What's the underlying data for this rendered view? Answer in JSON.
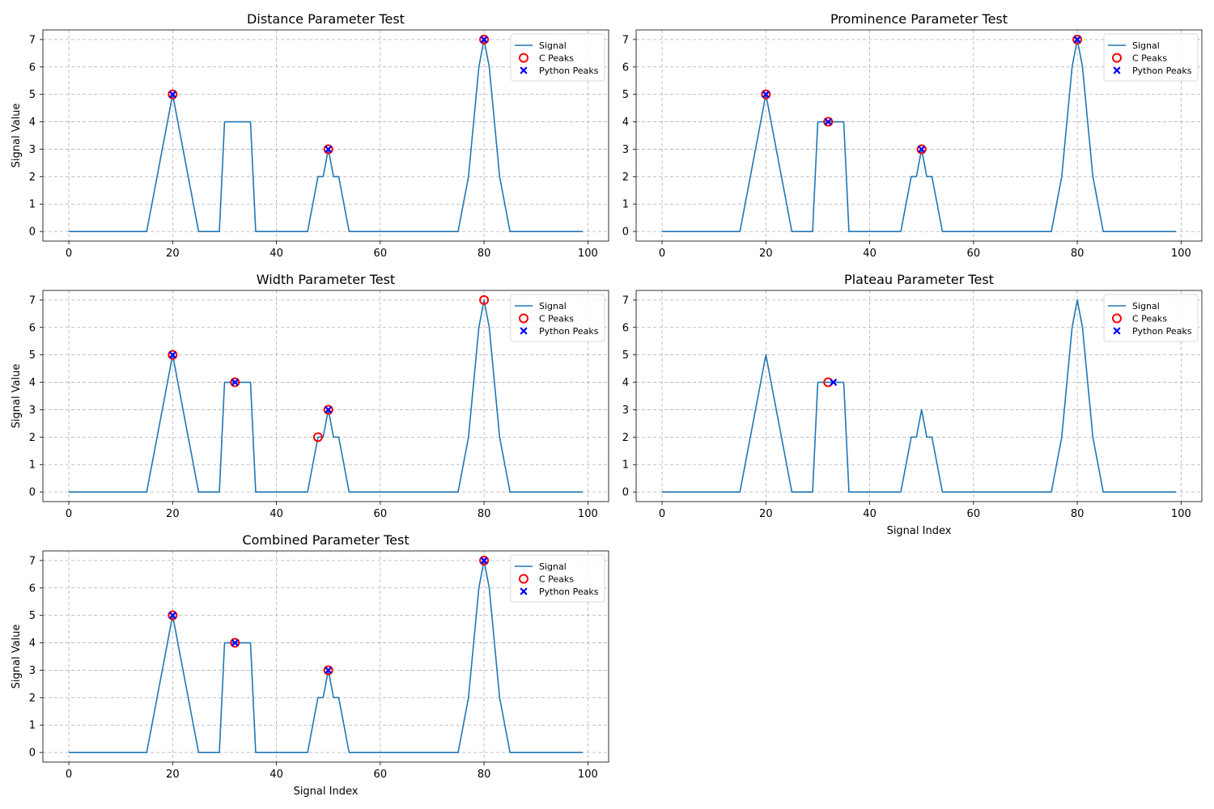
{
  "figure": {
    "colors": {
      "signal": "#1f77b4",
      "c_peaks": "#ff0000",
      "python_peaks": "#0000ff",
      "grid": "#b0b0b0",
      "frame": "#000000"
    }
  },
  "chart_data": [
    {
      "type": "line",
      "title": "Distance Parameter Test",
      "xlabel": "",
      "ylabel": "Signal Value",
      "xlim": [
        -5,
        104
      ],
      "ylim": [
        -0.35,
        7.35
      ],
      "xticks": [
        0,
        20,
        40,
        60,
        80,
        100
      ],
      "yticks": [
        0,
        1,
        2,
        3,
        4,
        5,
        6,
        7
      ],
      "grid": true,
      "legend_position": "top-right",
      "signal": {
        "name": "Signal",
        "x": [
          0,
          15,
          20,
          25,
          29,
          30,
          35,
          36,
          46,
          48,
          49,
          50,
          51,
          52,
          54,
          75,
          77,
          79,
          80,
          81,
          83,
          85,
          99
        ],
        "y": [
          0,
          0,
          5,
          0,
          0,
          4,
          4,
          0,
          0,
          2,
          2,
          3,
          2,
          2,
          0,
          0,
          2,
          6,
          7,
          6,
          2,
          0,
          0
        ]
      },
      "c_peaks": {
        "name": "C Peaks",
        "x": [
          20,
          50,
          80
        ],
        "y": [
          5,
          3,
          7
        ]
      },
      "python_peaks": {
        "name": "Python Peaks",
        "x": [
          20,
          50,
          80
        ],
        "y": [
          5,
          3,
          7
        ]
      }
    },
    {
      "type": "line",
      "title": "Prominence Parameter Test",
      "xlabel": "",
      "ylabel": "",
      "xlim": [
        -5,
        104
      ],
      "ylim": [
        -0.35,
        7.35
      ],
      "xticks": [
        0,
        20,
        40,
        60,
        80,
        100
      ],
      "yticks": [
        0,
        1,
        2,
        3,
        4,
        5,
        6,
        7
      ],
      "grid": true,
      "legend_position": "top-right",
      "signal": {
        "name": "Signal",
        "x": [
          0,
          15,
          20,
          25,
          29,
          30,
          35,
          36,
          46,
          48,
          49,
          50,
          51,
          52,
          54,
          75,
          77,
          79,
          80,
          81,
          83,
          85,
          99
        ],
        "y": [
          0,
          0,
          5,
          0,
          0,
          4,
          4,
          0,
          0,
          2,
          2,
          3,
          2,
          2,
          0,
          0,
          2,
          6,
          7,
          6,
          2,
          0,
          0
        ]
      },
      "c_peaks": {
        "name": "C Peaks",
        "x": [
          20,
          32,
          50,
          80
        ],
        "y": [
          5,
          4,
          3,
          7
        ]
      },
      "python_peaks": {
        "name": "Python Peaks",
        "x": [
          20,
          32,
          50,
          80
        ],
        "y": [
          5,
          4,
          3,
          7
        ]
      }
    },
    {
      "type": "line",
      "title": "Width Parameter Test",
      "xlabel": "",
      "ylabel": "Signal Value",
      "xlim": [
        -5,
        104
      ],
      "ylim": [
        -0.35,
        7.35
      ],
      "xticks": [
        0,
        20,
        40,
        60,
        80,
        100
      ],
      "yticks": [
        0,
        1,
        2,
        3,
        4,
        5,
        6,
        7
      ],
      "grid": true,
      "legend_position": "top-right",
      "signal": {
        "name": "Signal",
        "x": [
          0,
          15,
          20,
          25,
          29,
          30,
          35,
          36,
          46,
          48,
          49,
          50,
          51,
          52,
          54,
          75,
          77,
          79,
          80,
          81,
          83,
          85,
          99
        ],
        "y": [
          0,
          0,
          5,
          0,
          0,
          4,
          4,
          0,
          0,
          2,
          2,
          3,
          2,
          2,
          0,
          0,
          2,
          6,
          7,
          6,
          2,
          0,
          0
        ]
      },
      "c_peaks": {
        "name": "C Peaks",
        "x": [
          20,
          32,
          48,
          50,
          80
        ],
        "y": [
          5,
          4,
          2,
          3,
          7
        ]
      },
      "python_peaks": {
        "name": "Python Peaks",
        "x": [
          20,
          32,
          50
        ],
        "y": [
          5,
          4,
          3
        ]
      }
    },
    {
      "type": "line",
      "title": "Plateau Parameter Test",
      "xlabel": "Signal Index",
      "ylabel": "",
      "xlim": [
        -5,
        104
      ],
      "ylim": [
        -0.35,
        7.35
      ],
      "xticks": [
        0,
        20,
        40,
        60,
        80,
        100
      ],
      "yticks": [
        0,
        1,
        2,
        3,
        4,
        5,
        6,
        7
      ],
      "grid": true,
      "legend_position": "top-right",
      "signal": {
        "name": "Signal",
        "x": [
          0,
          15,
          20,
          25,
          29,
          30,
          35,
          36,
          46,
          48,
          49,
          50,
          51,
          52,
          54,
          75,
          77,
          79,
          80,
          81,
          83,
          85,
          99
        ],
        "y": [
          0,
          0,
          5,
          0,
          0,
          4,
          4,
          0,
          0,
          2,
          2,
          3,
          2,
          2,
          0,
          0,
          2,
          6,
          7,
          6,
          2,
          0,
          0
        ]
      },
      "c_peaks": {
        "name": "C Peaks",
        "x": [
          32
        ],
        "y": [
          4
        ]
      },
      "python_peaks": {
        "name": "Python Peaks",
        "x": [
          33
        ],
        "y": [
          4
        ]
      }
    },
    {
      "type": "line",
      "title": "Combined Parameter Test",
      "xlabel": "Signal Index",
      "ylabel": "Signal Value",
      "xlim": [
        -5,
        104
      ],
      "ylim": [
        -0.35,
        7.35
      ],
      "xticks": [
        0,
        20,
        40,
        60,
        80,
        100
      ],
      "yticks": [
        0,
        1,
        2,
        3,
        4,
        5,
        6,
        7
      ],
      "grid": true,
      "legend_position": "top-right",
      "signal": {
        "name": "Signal",
        "x": [
          0,
          15,
          20,
          25,
          29,
          30,
          35,
          36,
          46,
          48,
          49,
          50,
          51,
          52,
          54,
          75,
          77,
          79,
          80,
          81,
          83,
          85,
          99
        ],
        "y": [
          0,
          0,
          5,
          0,
          0,
          4,
          4,
          0,
          0,
          2,
          2,
          3,
          2,
          2,
          0,
          0,
          2,
          6,
          7,
          6,
          2,
          0,
          0
        ]
      },
      "c_peaks": {
        "name": "C Peaks",
        "x": [
          20,
          32,
          50,
          80
        ],
        "y": [
          5,
          4,
          3,
          7
        ]
      },
      "python_peaks": {
        "name": "Python Peaks",
        "x": [
          20,
          32,
          50,
          80
        ],
        "y": [
          5,
          4,
          3,
          7
        ]
      }
    }
  ]
}
